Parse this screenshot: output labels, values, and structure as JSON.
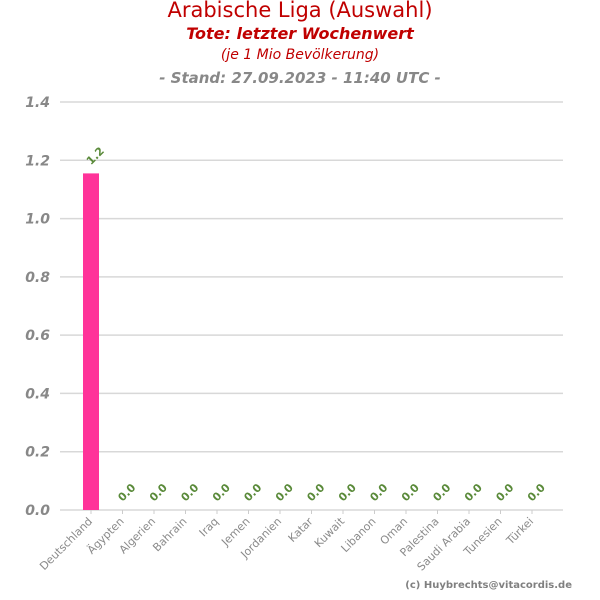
{
  "header": {
    "title": "Arabische Liga (Auswahl)",
    "subtitle": "Tote: letzter Wochenwert",
    "unit_note": "(je 1 Mio Bevölkerung)",
    "stand": "- Stand: 27.09.2023 - 11:40 UTC -"
  },
  "footer": {
    "credit": "(c) Huybrechts@vitacordis.de"
  },
  "chart_data": {
    "type": "bar",
    "title": "Arabische Liga (Auswahl)",
    "categories": [
      "Deutschland",
      "Ägypten",
      "Algerien",
      "Bahrain",
      "Iraq",
      "Jemen",
      "Jordanien",
      "Katar",
      "Kuwait",
      "Libanon",
      "Oman",
      "Palestina",
      "Saudi Arabia",
      "Tunesien",
      "Türkei"
    ],
    "values": [
      1.155,
      0,
      0,
      0,
      0,
      0,
      0,
      0,
      0,
      0,
      0,
      0,
      0,
      0,
      0
    ],
    "data_labels": [
      "1.2",
      "0.0",
      "0.0",
      "0.0",
      "0.0",
      "0.0",
      "0.0",
      "0.0",
      "0.0",
      "0.0",
      "0.0",
      "0.0",
      "0.0",
      "0.0",
      "0.0"
    ],
    "ylim": [
      0,
      1.4
    ],
    "yticks": [
      "0.0",
      "0.2",
      "0.4",
      "0.6",
      "0.8",
      "1.0",
      "1.2",
      "1.4"
    ],
    "grid": true,
    "colors": {
      "bar": "#ff3399",
      "label": "#5a8a3a",
      "grid": "#d8d8d8"
    }
  }
}
